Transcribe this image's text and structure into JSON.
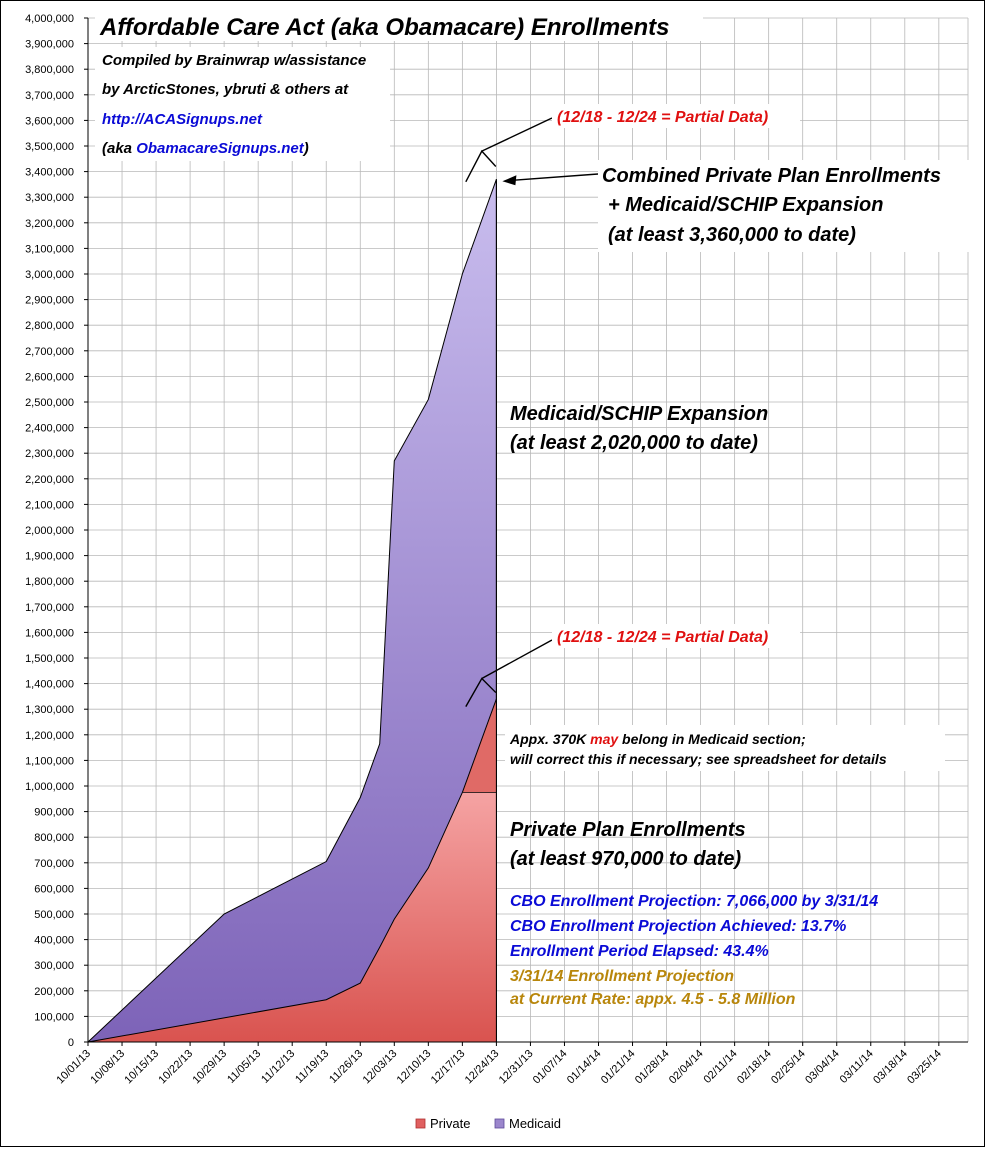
{
  "chart_data": {
    "type": "area",
    "title": "Affordable Care Act (aka Obamacare) Enrollments",
    "subtitle_lines": [
      "Compiled by Brainwrap w/assistance",
      "by ArcticStones, ybruti & others at"
    ],
    "link_primary": "http://ACASignups.net",
    "aka_prefix": "(aka ",
    "link_secondary": "ObamacareSignups.net",
    "aka_suffix": ")",
    "ylim": [
      0,
      4000000
    ],
    "y_step": 100000,
    "y_tick_labels": [
      "0",
      "100,000",
      "200,000",
      "300,000",
      "400,000",
      "500,000",
      "600,000",
      "700,000",
      "800,000",
      "900,000",
      "1,000,000",
      "1,100,000",
      "1,200,000",
      "1,300,000",
      "1,400,000",
      "1,500,000",
      "1,600,000",
      "1,700,000",
      "1,800,000",
      "1,900,000",
      "2,000,000",
      "2,100,000",
      "2,200,000",
      "2,300,000",
      "2,400,000",
      "2,500,000",
      "2,600,000",
      "2,700,000",
      "2,800,000",
      "2,900,000",
      "3,000,000",
      "3,100,000",
      "3,200,000",
      "3,300,000",
      "3,400,000",
      "3,500,000",
      "3,600,000",
      "3,700,000",
      "3,800,000",
      "3,900,000",
      "4,000,000"
    ],
    "x_tick_labels": [
      "10/01/13",
      "10/08/13",
      "10/15/13",
      "10/22/13",
      "10/29/13",
      "11/05/13",
      "11/12/13",
      "11/19/13",
      "11/26/13",
      "12/03/13",
      "12/10/13",
      "12/17/13",
      "12/24/13",
      "12/31/13",
      "01/07/14",
      "01/14/14",
      "01/21/14",
      "01/28/14",
      "02/04/14",
      "02/11/14",
      "02/18/14",
      "02/25/14",
      "03/04/14",
      "03/11/14",
      "03/18/14",
      "03/25/14"
    ],
    "x_range": [
      "10/01/13",
      "03/31/14"
    ],
    "grid": true,
    "legend_position": "bottom",
    "series": [
      {
        "name": "Private",
        "color": "#e06060",
        "points": [
          [
            "10/01/13",
            0
          ],
          [
            "11/19/13",
            165000
          ],
          [
            "11/26/13",
            230000
          ],
          [
            "11/30/13",
            370000
          ],
          [
            "12/03/13",
            480000
          ],
          [
            "12/10/13",
            680000
          ],
          [
            "12/17/13",
            975000
          ],
          [
            "12/24/13",
            975000
          ]
        ],
        "partial_segment": [
          [
            "12/17/13",
            975000
          ],
          [
            "12/24/13",
            1340000
          ]
        ]
      },
      {
        "name": "Medicaid",
        "color": "#9b86cc",
        "points": [
          [
            "10/01/13",
            0
          ],
          [
            "10/29/13",
            500000
          ],
          [
            "11/19/13",
            705000
          ],
          [
            "11/26/13",
            955000
          ],
          [
            "11/30/13",
            1165000
          ],
          [
            "12/03/13",
            2270000
          ],
          [
            "12/10/13",
            2510000
          ],
          [
            "12/17/13",
            3000000
          ],
          [
            "12/24/13",
            3370000
          ]
        ]
      }
    ],
    "annotations": {
      "partial_data_note": "(12/18 - 12/24 = Partial Data)",
      "combined_lines": [
        "Combined Private Plan Enrollments",
        "+ Medicaid/SCHIP Expansion",
        "(at least 3,360,000 to date)"
      ],
      "medicaid_lines": [
        "Medicaid/SCHIP Expansion",
        "(at least 2,020,000 to date)"
      ],
      "appx_line1_before": "Appx. 370K ",
      "appx_line1_highlight": "may",
      "appx_line1_after": " belong in Medicaid section;",
      "appx_line2": "will correct this if necessary; see spreadsheet for details",
      "private_lines": [
        "Private Plan Enrollments",
        "(at least 970,000 to date)"
      ],
      "cbo_lines": [
        "CBO Enrollment Projection: 7,066,000 by 3/31/14",
        "CBO Enrollment Projection Achieved: 13.7%",
        "Enrollment Period Elapsed: 43.4%"
      ],
      "projection_lines": [
        "3/31/14 Enrollment Projection",
        "at Current Rate: appx. 4.5 - 5.8 Million"
      ]
    },
    "colors": {
      "private_top": "#f5a3a3",
      "private_bottom": "#d9534f",
      "private_partial": "#e06a66",
      "medicaid_top": "#c9bdee",
      "medicaid_bottom": "#7d63b8",
      "grid": "#b8b8b8"
    }
  }
}
